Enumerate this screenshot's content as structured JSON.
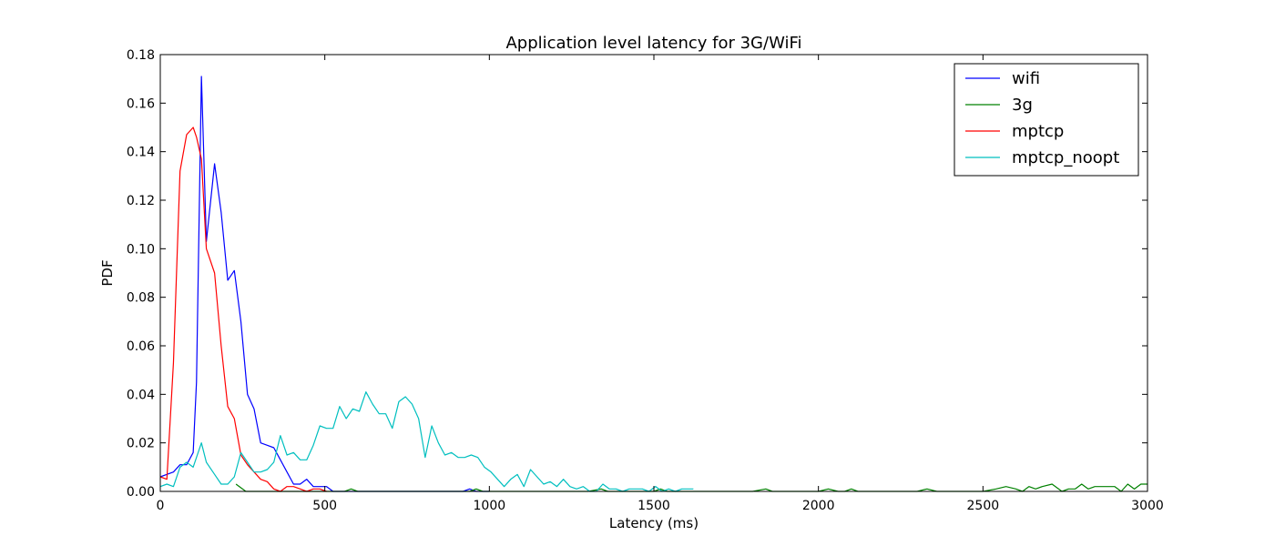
{
  "chart_data": {
    "type": "line",
    "title": "Application level latency for 3G/WiFi",
    "xlabel": "Latency (ms)",
    "ylabel": "PDF",
    "xlim": [
      0,
      3000
    ],
    "ylim": [
      0,
      0.18
    ],
    "xticks": [
      0,
      500,
      1000,
      1500,
      2000,
      2500,
      3000
    ],
    "yticks": [
      0.0,
      0.02,
      0.04,
      0.06,
      0.08,
      0.1,
      0.12,
      0.14,
      0.16,
      0.18
    ],
    "xtick_labels": [
      "0",
      "500",
      "1000",
      "1500",
      "2000",
      "2500",
      "3000"
    ],
    "ytick_labels": [
      "0.00",
      "0.02",
      "0.04",
      "0.06",
      "0.08",
      "0.10",
      "0.12",
      "0.14",
      "0.16",
      "0.18"
    ],
    "grid": false,
    "legend_position": "top-right",
    "series": [
      {
        "name": "wifi",
        "color": "#0000ff",
        "x": [
          0,
          20,
          40,
          60,
          80,
          100,
          110,
          125,
          140,
          165,
          185,
          205,
          225,
          245,
          265,
          285,
          305,
          325,
          345,
          365,
          385,
          405,
          425,
          445,
          465,
          485,
          505,
          525,
          545,
          600,
          700,
          800,
          820,
          840,
          900,
          920,
          940,
          960,
          1000
        ],
        "y": [
          0.006,
          0.007,
          0.008,
          0.011,
          0.011,
          0.016,
          0.045,
          0.171,
          0.103,
          0.135,
          0.115,
          0.087,
          0.091,
          0.07,
          0.04,
          0.034,
          0.02,
          0.019,
          0.018,
          0.013,
          0.008,
          0.003,
          0.003,
          0.005,
          0.002,
          0.002,
          0.002,
          0.0,
          0.0,
          0.0,
          0.0,
          0.0,
          0.0,
          0.0,
          0.0,
          0.0,
          0.001,
          0.0,
          0.0
        ]
      },
      {
        "name": "3g",
        "color": "#008000",
        "x": [
          230,
          260,
          300,
          400,
          500,
          560,
          580,
          600,
          700,
          900,
          940,
          960,
          980,
          1000,
          1300,
          1340,
          1360,
          1400,
          1500,
          1520,
          1540,
          1560,
          1600,
          1800,
          1840,
          1860,
          1900,
          2000,
          2030,
          2060,
          2080,
          2100,
          2120,
          2300,
          2330,
          2360,
          2400,
          2500,
          2540,
          2570,
          2600,
          2620,
          2640,
          2660,
          2680,
          2710,
          2740,
          2760,
          2780,
          2800,
          2820,
          2840,
          2860,
          2880,
          2900,
          2920,
          2940,
          2960,
          2980,
          3000
        ],
        "y": [
          0.003,
          0.0,
          0.0,
          0.0,
          0.0,
          0.0,
          0.001,
          0.0,
          0.0,
          0.0,
          0.0,
          0.001,
          0.0,
          0.0,
          0.0,
          0.001,
          0.0,
          0.0,
          0.0,
          0.001,
          0.0,
          0.0,
          0.0,
          0.0,
          0.001,
          0.0,
          0.0,
          0.0,
          0.001,
          0.0,
          0.0,
          0.001,
          0.0,
          0.0,
          0.001,
          0.0,
          0.0,
          0.0,
          0.001,
          0.002,
          0.001,
          0.0,
          0.002,
          0.001,
          0.002,
          0.003,
          0.0,
          0.001,
          0.001,
          0.003,
          0.001,
          0.002,
          0.002,
          0.002,
          0.002,
          0.0,
          0.003,
          0.001,
          0.003,
          0.003
        ]
      },
      {
        "name": "mptcp",
        "color": "#ff0000",
        "x": [
          0,
          20,
          40,
          60,
          80,
          100,
          110,
          125,
          140,
          165,
          185,
          205,
          225,
          245,
          265,
          285,
          305,
          325,
          345,
          365,
          385,
          405,
          425,
          445,
          465,
          485,
          505
        ],
        "y": [
          0.006,
          0.005,
          0.053,
          0.132,
          0.147,
          0.15,
          0.146,
          0.137,
          0.1,
          0.09,
          0.06,
          0.035,
          0.03,
          0.015,
          0.011,
          0.008,
          0.005,
          0.004,
          0.001,
          0.0,
          0.002,
          0.002,
          0.001,
          0.0,
          0.001,
          0.001,
          0.0
        ]
      },
      {
        "name": "mptcp_noopt",
        "color": "#00bfbf",
        "x": [
          0,
          20,
          40,
          60,
          80,
          100,
          125,
          140,
          165,
          185,
          205,
          225,
          245,
          265,
          285,
          305,
          325,
          345,
          365,
          385,
          405,
          425,
          445,
          465,
          485,
          505,
          525,
          545,
          565,
          585,
          605,
          625,
          645,
          665,
          685,
          705,
          725,
          745,
          765,
          785,
          805,
          825,
          845,
          865,
          885,
          905,
          925,
          945,
          965,
          985,
          1005,
          1025,
          1045,
          1065,
          1085,
          1105,
          1125,
          1145,
          1165,
          1185,
          1205,
          1225,
          1245,
          1265,
          1285,
          1305,
          1325,
          1345,
          1365,
          1385,
          1405,
          1425,
          1445,
          1465,
          1485,
          1505,
          1525,
          1545,
          1565,
          1585,
          1605,
          1620
        ],
        "y": [
          0.002,
          0.003,
          0.002,
          0.01,
          0.012,
          0.01,
          0.02,
          0.012,
          0.007,
          0.003,
          0.003,
          0.006,
          0.016,
          0.012,
          0.008,
          0.008,
          0.009,
          0.012,
          0.023,
          0.015,
          0.016,
          0.013,
          0.013,
          0.019,
          0.027,
          0.026,
          0.026,
          0.035,
          0.03,
          0.034,
          0.033,
          0.041,
          0.036,
          0.032,
          0.032,
          0.026,
          0.037,
          0.039,
          0.036,
          0.03,
          0.014,
          0.027,
          0.02,
          0.015,
          0.016,
          0.014,
          0.014,
          0.015,
          0.014,
          0.01,
          0.008,
          0.005,
          0.002,
          0.005,
          0.007,
          0.002,
          0.009,
          0.006,
          0.003,
          0.004,
          0.002,
          0.005,
          0.002,
          0.001,
          0.002,
          0.0,
          0.0,
          0.003,
          0.001,
          0.001,
          0.0,
          0.001,
          0.001,
          0.001,
          0.0,
          0.002,
          0.0,
          0.001,
          0.0,
          0.001,
          0.001,
          0.001
        ]
      }
    ]
  }
}
